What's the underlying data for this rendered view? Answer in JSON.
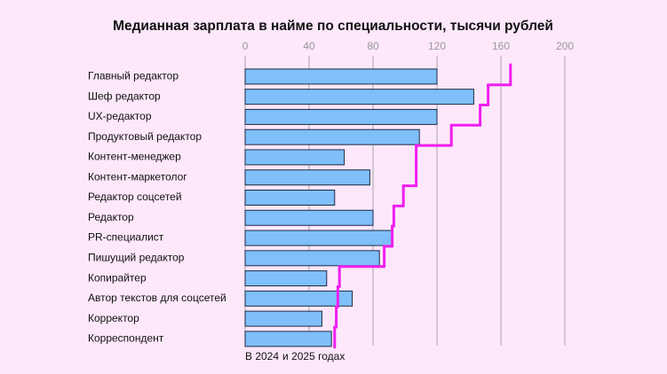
{
  "chart_data": {
    "type": "bar",
    "orientation": "horizontal",
    "title": "Медианная зарплата в найме по специальности, тысячи рублей",
    "categories": [
      "Главный редактор",
      "Шеф редактор",
      "UX-редактор",
      "Продуктовый редактор",
      "Контент-менеджер",
      "Контент-маркетолог",
      "Редактор соцсетей",
      "Редактор",
      "PR-специалист",
      "Пишущий редактор",
      "Копирайтер",
      "Автор текстов для соцсетей",
      "Корректор",
      "Корреспондент"
    ],
    "series": [
      {
        "name": "В 2024",
        "color": "#7fbffa",
        "values": [
          120,
          143,
          120,
          109,
          62,
          78,
          56,
          80,
          92,
          84,
          51,
          67,
          48,
          54
        ]
      },
      {
        "name": "и 2025 годах",
        "color": "#f01ef0",
        "type": "step",
        "values": [
          166,
          152,
          147,
          129,
          107,
          107,
          99,
          93,
          92,
          87,
          59,
          58,
          57,
          56
        ]
      }
    ],
    "xlim": [
      0,
      200
    ],
    "xticks": [
      0,
      40,
      80,
      120,
      160,
      200
    ],
    "grid": true
  }
}
